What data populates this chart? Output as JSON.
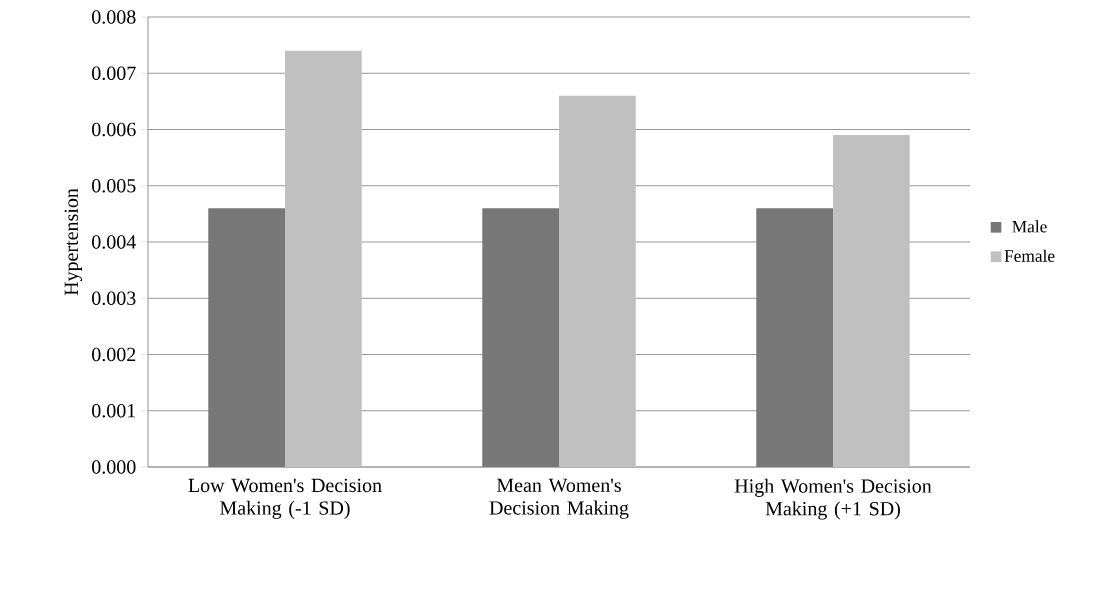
{
  "chart_data": {
    "type": "bar",
    "ylabel": "Hypertension",
    "categories": [
      "Low Women's Decision Making (-1 SD)",
      "Mean Women's Decision Making",
      "High Women's Decision Making (+1 SD)"
    ],
    "series": [
      {
        "name": "Male",
        "color": "#777777",
        "values": [
          0.0046,
          0.0046,
          0.0046
        ]
      },
      {
        "name": "Female",
        "color": "#c0c0c0",
        "values": [
          0.0074,
          0.0066,
          0.0059
        ]
      }
    ],
    "ylim": [
      0,
      0.008
    ],
    "yticks": [
      {
        "value": 0,
        "label": "0.000"
      },
      {
        "value": 0.001,
        "label": "0.001"
      },
      {
        "value": 0.002,
        "label": "0.002"
      },
      {
        "value": 0.003,
        "label": "0.003"
      },
      {
        "value": 0.004,
        "label": "0.004"
      },
      {
        "value": 0.005,
        "label": "0.005"
      },
      {
        "value": 0.006,
        "label": "0.006"
      },
      {
        "value": 0.007,
        "label": "0.007"
      },
      {
        "value": 0.008,
        "label": "0.008"
      }
    ],
    "grid": "y",
    "legend": "right"
  }
}
